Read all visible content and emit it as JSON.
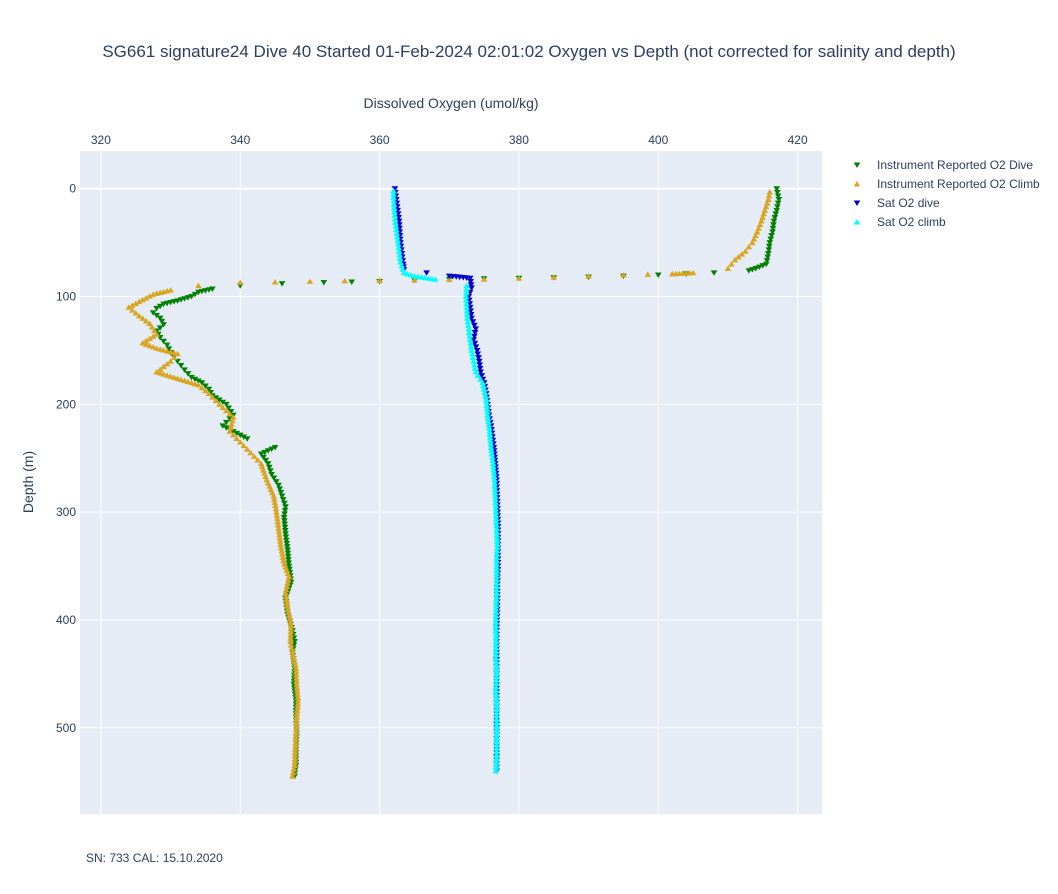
{
  "chart_data": {
    "type": "scatter",
    "title": "SG661 signature24 Dive 40 Started 01-Feb-2024 02:01:02  Oxygen vs Depth (not corrected for salinity and depth)",
    "xlabel": "Dissolved Oxygen (umol/kg)",
    "ylabel": "Depth (m)",
    "xlim": [
      317,
      423.5
    ],
    "ylim": [
      580,
      -35
    ],
    "x_axis_position": "top",
    "y_reversed": true,
    "grid": true,
    "legend_position": "top-right",
    "x_ticks": [
      320,
      340,
      360,
      380,
      400,
      420
    ],
    "y_ticks": [
      0,
      100,
      200,
      300,
      400,
      500
    ],
    "footer": "SN: 733  CAL: 15.10.2020",
    "series": [
      {
        "name": "Instrument Reported O2 Dive",
        "color": "#008000",
        "marker": "triangle-down",
        "points": [
          [
            417,
            0
          ],
          [
            417.3,
            10
          ],
          [
            417,
            20
          ],
          [
            416.6,
            30
          ],
          [
            416.4,
            40
          ],
          [
            416,
            50
          ],
          [
            415.8,
            60
          ],
          [
            415.5,
            70
          ],
          [
            414,
            74
          ],
          [
            413,
            76
          ],
          [
            408,
            78
          ],
          [
            400,
            80
          ],
          [
            390,
            82
          ],
          [
            380,
            83
          ],
          [
            370,
            84
          ],
          [
            360,
            86
          ],
          [
            352,
            87
          ],
          [
            346,
            88
          ],
          [
            340,
            90
          ],
          [
            336,
            93
          ],
          [
            334,
            96
          ],
          [
            333,
            100
          ],
          [
            331,
            104
          ],
          [
            329,
            107
          ],
          [
            328,
            111
          ],
          [
            327.5,
            115
          ],
          [
            328.5,
            120
          ],
          [
            329,
            126
          ],
          [
            328,
            132
          ],
          [
            328.5,
            138
          ],
          [
            329.5,
            145
          ],
          [
            330,
            152
          ],
          [
            331,
            160
          ],
          [
            332,
            168
          ],
          [
            333,
            175
          ],
          [
            334.5,
            180
          ],
          [
            335.5,
            186
          ],
          [
            336,
            192
          ],
          [
            338,
            200
          ],
          [
            339,
            210
          ],
          [
            337.5,
            220
          ],
          [
            341,
            232
          ],
          [
            345,
            240
          ],
          [
            343,
            246
          ],
          [
            344,
            255
          ],
          [
            344.5,
            265
          ],
          [
            345.5,
            275
          ],
          [
            346,
            285
          ],
          [
            346.5,
            295
          ],
          [
            346.3,
            305
          ],
          [
            346.5,
            320
          ],
          [
            346.8,
            335
          ],
          [
            347,
            350
          ],
          [
            347.3,
            365
          ],
          [
            346.5,
            380
          ],
          [
            346.8,
            395
          ],
          [
            347.5,
            410
          ],
          [
            347.8,
            420
          ],
          [
            347.5,
            430
          ],
          [
            347.8,
            445
          ],
          [
            347.7,
            460
          ],
          [
            348,
            475
          ],
          [
            348,
            490
          ],
          [
            348.1,
            505
          ],
          [
            348,
            520
          ],
          [
            348,
            535
          ],
          [
            347.8,
            545
          ]
        ]
      },
      {
        "name": "Instrument Reported O2 Climb",
        "color": "#daa520",
        "marker": "triangle-up",
        "points": [
          [
            347.5,
            545
          ],
          [
            347.8,
            535
          ],
          [
            347.9,
            520
          ],
          [
            348,
            505
          ],
          [
            348.1,
            490
          ],
          [
            348.3,
            475
          ],
          [
            348.1,
            460
          ],
          [
            348,
            445
          ],
          [
            347.5,
            430
          ],
          [
            347.2,
            420
          ],
          [
            347.3,
            405
          ],
          [
            346.8,
            390
          ],
          [
            346.5,
            375
          ],
          [
            347,
            360
          ],
          [
            346.2,
            345
          ],
          [
            345.8,
            330
          ],
          [
            345.5,
            315
          ],
          [
            345.2,
            300
          ],
          [
            344.8,
            285
          ],
          [
            343.8,
            270
          ],
          [
            343,
            255
          ],
          [
            341.5,
            245
          ],
          [
            340,
            235
          ],
          [
            338.5,
            225
          ],
          [
            339,
            212
          ],
          [
            337,
            200
          ],
          [
            335.5,
            190
          ],
          [
            334,
            182
          ],
          [
            331,
            176
          ],
          [
            328,
            170
          ],
          [
            330,
            160
          ],
          [
            331,
            153
          ],
          [
            328,
            148
          ],
          [
            326,
            143
          ],
          [
            328,
            135
          ],
          [
            327,
            125
          ],
          [
            325.5,
            118
          ],
          [
            324,
            110
          ],
          [
            326,
            103
          ],
          [
            327.5,
            98
          ],
          [
            330,
            94
          ],
          [
            334,
            90
          ],
          [
            340,
            87
          ],
          [
            350,
            86
          ],
          [
            360,
            85
          ],
          [
            375,
            84
          ],
          [
            385,
            82
          ],
          [
            395,
            80
          ],
          [
            402,
            79
          ],
          [
            405,
            78
          ],
          [
            410,
            74
          ],
          [
            411,
            66
          ],
          [
            412.5,
            58
          ],
          [
            413.5,
            50
          ],
          [
            414.2,
            40
          ],
          [
            414.8,
            30
          ],
          [
            415.3,
            20
          ],
          [
            415.8,
            10
          ],
          [
            416,
            3
          ]
        ]
      },
      {
        "name": "Sat O2 dive",
        "color": "#0000cd",
        "marker": "triangle-down",
        "points": [
          [
            362.2,
            0
          ],
          [
            362.4,
            10
          ],
          [
            362.6,
            20
          ],
          [
            362.8,
            30
          ],
          [
            362.9,
            40
          ],
          [
            363,
            50
          ],
          [
            363.2,
            60
          ],
          [
            363.4,
            70
          ],
          [
            363.5,
            75
          ],
          [
            370,
            81
          ],
          [
            373,
            83
          ],
          [
            373.2,
            92
          ],
          [
            372.8,
            100
          ],
          [
            373,
            110
          ],
          [
            373.2,
            120
          ],
          [
            373.8,
            130
          ],
          [
            373.5,
            140
          ],
          [
            374,
            150
          ],
          [
            374.3,
            160
          ],
          [
            374.5,
            170
          ],
          [
            375,
            180
          ],
          [
            375.3,
            190
          ],
          [
            375.5,
            200
          ],
          [
            375.7,
            210
          ],
          [
            376,
            220
          ],
          [
            376.2,
            230
          ],
          [
            376.4,
            240
          ],
          [
            376.6,
            255
          ],
          [
            376.8,
            270
          ],
          [
            376.9,
            290
          ],
          [
            377,
            310
          ],
          [
            377,
            330
          ],
          [
            377,
            350
          ],
          [
            376.9,
            370
          ],
          [
            376.9,
            390
          ],
          [
            376.8,
            410
          ],
          [
            376.8,
            430
          ],
          [
            376.8,
            450
          ],
          [
            376.8,
            470
          ],
          [
            376.8,
            490
          ],
          [
            376.8,
            510
          ],
          [
            376.8,
            530
          ],
          [
            376.8,
            540
          ]
        ]
      },
      {
        "name": "Sat O2 climb",
        "color": "#00ffff",
        "marker": "triangle-up",
        "points": [
          [
            376.7,
            540
          ],
          [
            376.8,
            525
          ],
          [
            376.8,
            510
          ],
          [
            376.8,
            495
          ],
          [
            376.8,
            480
          ],
          [
            376.7,
            465
          ],
          [
            376.8,
            450
          ],
          [
            376.7,
            435
          ],
          [
            376.7,
            420
          ],
          [
            376.7,
            405
          ],
          [
            376.7,
            390
          ],
          [
            376.8,
            375
          ],
          [
            376.8,
            360
          ],
          [
            376.8,
            345
          ],
          [
            376.9,
            330
          ],
          [
            376.8,
            315
          ],
          [
            376.7,
            300
          ],
          [
            376.6,
            285
          ],
          [
            376.5,
            270
          ],
          [
            376.3,
            255
          ],
          [
            376,
            240
          ],
          [
            375.8,
            225
          ],
          [
            375.5,
            210
          ],
          [
            375.3,
            195
          ],
          [
            374.8,
            180
          ],
          [
            373.8,
            170
          ],
          [
            373.5,
            160
          ],
          [
            373.2,
            150
          ],
          [
            373,
            140
          ],
          [
            372.8,
            130
          ],
          [
            372.6,
            120
          ],
          [
            372.5,
            110
          ],
          [
            372.4,
            100
          ],
          [
            372.5,
            90
          ],
          [
            368,
            84
          ],
          [
            365,
            81
          ],
          [
            363.5,
            78
          ],
          [
            363,
            68
          ],
          [
            362.8,
            58
          ],
          [
            362.6,
            48
          ],
          [
            362.4,
            38
          ],
          [
            362.2,
            28
          ],
          [
            362.1,
            18
          ],
          [
            362,
            8
          ],
          [
            362,
            2
          ]
        ]
      }
    ]
  }
}
